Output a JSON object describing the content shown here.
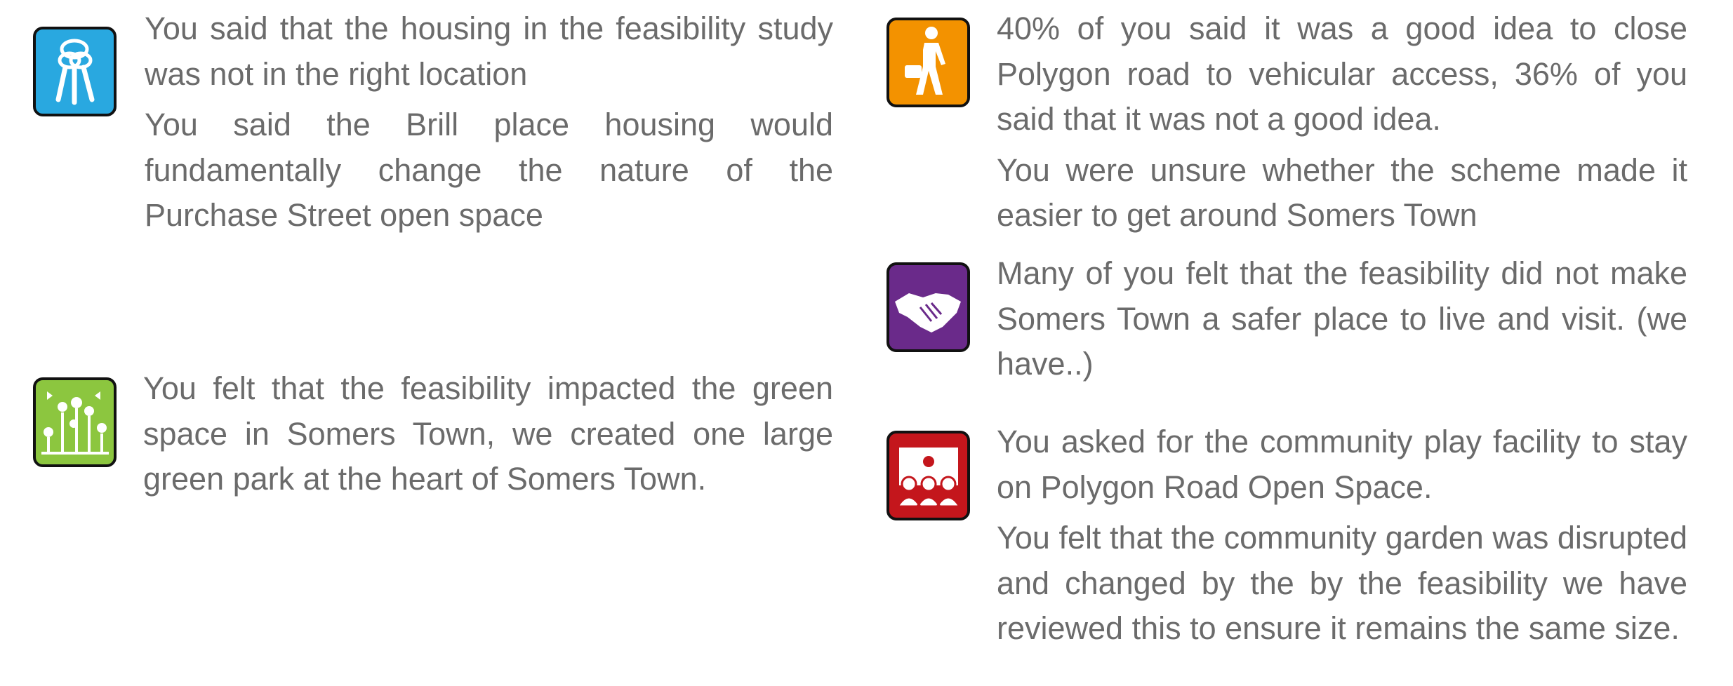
{
  "items": [
    {
      "paragraphs": [
        "You said that the housing in the feasibility study was not in the right location",
        "You said the Brill place housing would fundamentally change the nature of the Purchase Street open space"
      ]
    },
    {
      "paragraphs": [
        "You felt that the feasibility impacted the green space in Somers Town, we created one large green park at the heart of Somers Town."
      ]
    },
    {
      "paragraphs": [
        "40% of you said it was a good idea to close Polygon road to vehicular access, 36% of you said that it was not a good idea.",
        "You were unsure whether the scheme made it easier to get around Somers Town"
      ]
    },
    {
      "paragraphs": [
        "Many of you felt that the feasibility did not make Somers Town a safer place to live and visit. (we have..)"
      ]
    },
    {
      "paragraphs": [
        "You asked for the community play facility to stay on Polygon Road Open Space.",
        "You felt that the community garden was disrupted and changed by the by the feasibility we have reviewed this to ensure it remains the same size."
      ]
    }
  ]
}
